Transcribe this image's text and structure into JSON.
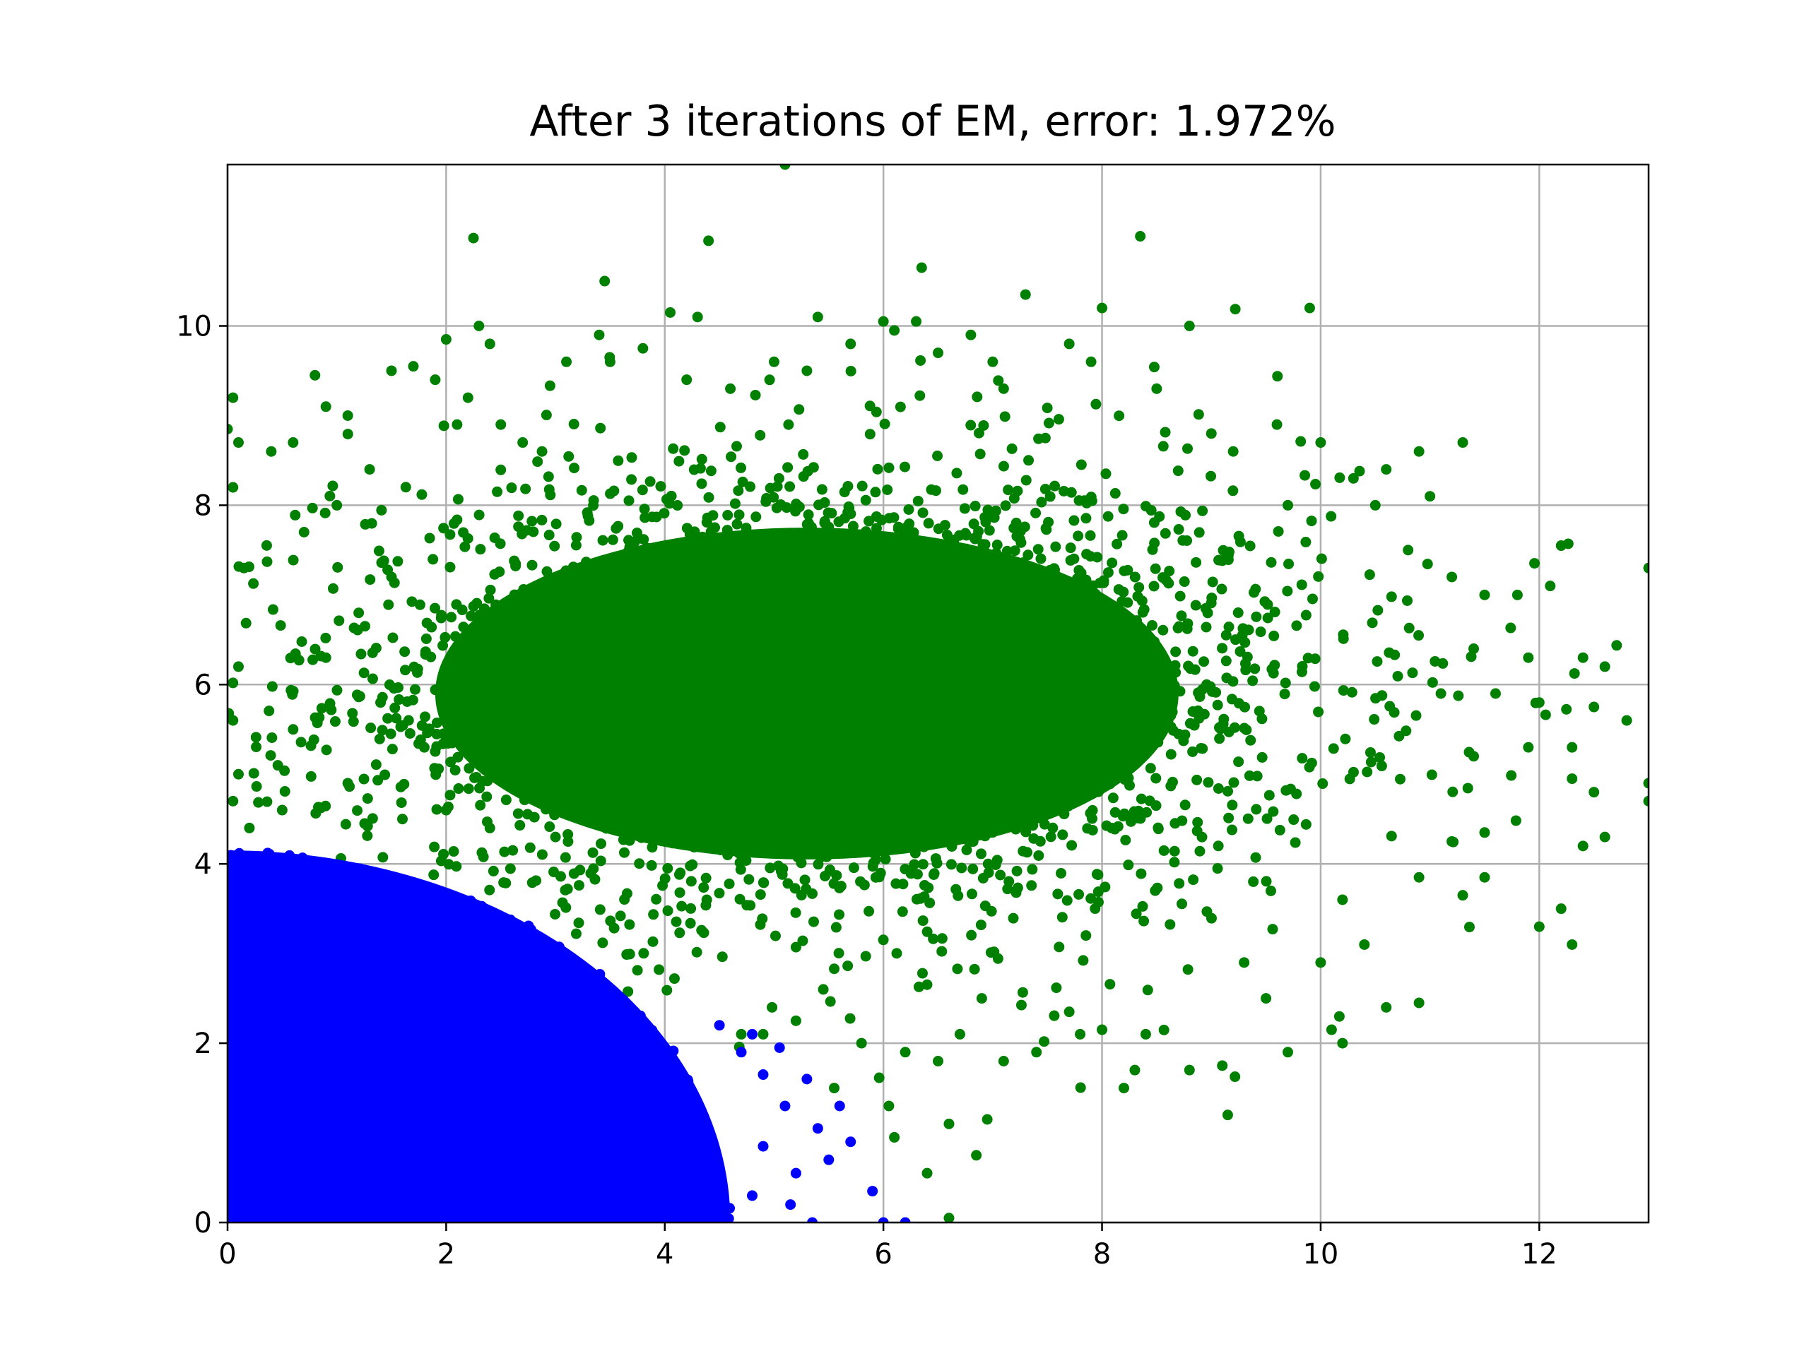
{
  "chart_data": {
    "type": "scatter",
    "title": "After 3 iterations of EM, error: 1.972%",
    "xlabel": "",
    "ylabel": "",
    "xlim": [
      0,
      13
    ],
    "ylim": [
      0,
      11.8
    ],
    "x_ticks": [
      0,
      2,
      4,
      6,
      8,
      10,
      12
    ],
    "y_ticks": [
      0,
      2,
      4,
      6,
      8,
      10
    ],
    "grid": true,
    "legend": "none",
    "series": [
      {
        "color": "#008000",
        "description_of_distribution": null,
        "points": [
          [
            0.05,
            9.2
          ],
          [
            0.0,
            8.85
          ],
          [
            0.1,
            8.7
          ],
          [
            0.05,
            8.2
          ],
          [
            0.15,
            7.3
          ],
          [
            0.1,
            6.2
          ],
          [
            0.05,
            5.6
          ],
          [
            0.1,
            5.0
          ],
          [
            0.05,
            4.7
          ],
          [
            0.2,
            4.4
          ],
          [
            0.8,
            9.45
          ],
          [
            1.1,
            9.0
          ],
          [
            0.9,
            9.1
          ],
          [
            0.6,
            8.7
          ],
          [
            0.4,
            8.6
          ],
          [
            1.3,
            8.4
          ],
          [
            1.0,
            8.0
          ],
          [
            0.7,
            7.7
          ],
          [
            1.5,
            7.2
          ],
          [
            1.2,
            6.8
          ],
          [
            0.9,
            6.3
          ],
          [
            1.4,
            5.8
          ],
          [
            0.6,
            5.5
          ],
          [
            1.8,
            5.3
          ],
          [
            1.1,
            4.9
          ],
          [
            0.5,
            4.6
          ],
          [
            1.6,
            4.5
          ],
          [
            2.0,
            4.6
          ],
          [
            2.4,
            4.4
          ],
          [
            3.0,
            4.3
          ],
          [
            1.5,
            9.5
          ],
          [
            1.7,
            9.55
          ],
          [
            1.9,
            9.4
          ],
          [
            2.0,
            9.85
          ],
          [
            2.2,
            9.2
          ],
          [
            2.1,
            8.9
          ],
          [
            2.5,
            8.9
          ],
          [
            2.7,
            8.7
          ],
          [
            2.3,
            10.0
          ],
          [
            2.4,
            9.8
          ],
          [
            2.25,
            10.98
          ],
          [
            3.1,
            9.6
          ],
          [
            3.4,
            9.9
          ],
          [
            3.5,
            9.6
          ],
          [
            3.45,
            10.5
          ],
          [
            3.8,
            9.75
          ],
          [
            4.05,
            10.15
          ],
          [
            4.3,
            10.1
          ],
          [
            4.2,
            9.4
          ],
          [
            4.6,
            9.3
          ],
          [
            4.4,
            10.95
          ],
          [
            5.1,
            11.8
          ],
          [
            5.0,
            9.6
          ],
          [
            5.4,
            10.1
          ],
          [
            5.3,
            9.5
          ],
          [
            5.7,
            9.8
          ],
          [
            6.0,
            10.05
          ],
          [
            6.3,
            10.05
          ],
          [
            6.35,
            10.65
          ],
          [
            6.1,
            9.95
          ],
          [
            6.5,
            9.7
          ],
          [
            6.8,
            9.9
          ],
          [
            7.0,
            9.6
          ],
          [
            7.3,
            10.35
          ],
          [
            7.1,
            9.3
          ],
          [
            7.7,
            9.8
          ],
          [
            8.0,
            10.2
          ],
          [
            7.9,
            9.6
          ],
          [
            8.35,
            11.0
          ],
          [
            8.5,
            9.3
          ],
          [
            8.8,
            10.0
          ],
          [
            9.0,
            8.8
          ],
          [
            9.2,
            8.6
          ],
          [
            9.6,
            8.9
          ],
          [
            9.9,
            10.2
          ],
          [
            10.0,
            8.7
          ],
          [
            10.3,
            8.3
          ],
          [
            9.7,
            8.0
          ],
          [
            10.5,
            8.0
          ],
          [
            10.6,
            8.4
          ],
          [
            10.9,
            8.6
          ],
          [
            11.3,
            8.7
          ],
          [
            11.0,
            8.1
          ],
          [
            10.8,
            7.5
          ],
          [
            11.2,
            7.2
          ],
          [
            11.5,
            7.0
          ],
          [
            11.8,
            7.0
          ],
          [
            12.1,
            7.1
          ],
          [
            12.2,
            7.55
          ],
          [
            13.0,
            7.3
          ],
          [
            11.4,
            6.4
          ],
          [
            11.9,
            6.3
          ],
          [
            12.4,
            6.3
          ],
          [
            12.6,
            6.2
          ],
          [
            11.1,
            5.9
          ],
          [
            11.6,
            5.9
          ],
          [
            12.0,
            5.8
          ],
          [
            12.5,
            5.75
          ],
          [
            12.8,
            5.6
          ],
          [
            11.9,
            5.3
          ],
          [
            12.3,
            5.3
          ],
          [
            11.4,
            5.2
          ],
          [
            12.3,
            4.95
          ],
          [
            12.5,
            4.8
          ],
          [
            13.0,
            4.9
          ],
          [
            13.0,
            4.7
          ],
          [
            11.5,
            4.35
          ],
          [
            12.6,
            4.3
          ],
          [
            12.4,
            4.2
          ],
          [
            11.2,
            4.25
          ],
          [
            11.5,
            3.85
          ],
          [
            10.9,
            3.85
          ],
          [
            11.3,
            3.65
          ],
          [
            12.0,
            3.3
          ],
          [
            12.2,
            3.5
          ],
          [
            12.3,
            3.1
          ],
          [
            10.2,
            3.6
          ],
          [
            10.4,
            3.1
          ],
          [
            10.0,
            2.9
          ],
          [
            10.2,
            2.0
          ],
          [
            10.9,
            2.45
          ],
          [
            10.6,
            2.4
          ],
          [
            10.1,
            2.15
          ],
          [
            9.7,
            1.9
          ],
          [
            9.5,
            2.5
          ],
          [
            9.3,
            2.9
          ],
          [
            9.1,
            1.75
          ],
          [
            9.15,
            1.2
          ],
          [
            8.8,
            1.7
          ],
          [
            8.3,
            1.7
          ],
          [
            8.4,
            2.1
          ],
          [
            8.0,
            2.15
          ],
          [
            7.7,
            2.35
          ],
          [
            7.4,
            1.9
          ],
          [
            7.1,
            1.8
          ],
          [
            6.9,
            2.5
          ],
          [
            6.7,
            2.1
          ],
          [
            6.5,
            1.8
          ],
          [
            6.6,
            1.1
          ],
          [
            6.85,
            0.75
          ],
          [
            6.4,
            0.55
          ],
          [
            6.6,
            0.05
          ],
          [
            6.1,
            0.95
          ],
          [
            6.05,
            1.3
          ],
          [
            5.8,
            2.0
          ],
          [
            5.55,
            1.5
          ],
          [
            5.45,
            2.6
          ],
          [
            5.2,
            2.25
          ],
          [
            4.9,
            2.1
          ],
          [
            4.7,
            2.1
          ],
          [
            6.2,
            1.9
          ],
          [
            6.95,
            1.15
          ],
          [
            7.8,
            2.1
          ],
          [
            8.2,
            1.5
          ]
        ]
      },
      {
        "color": "#0000ff",
        "points": [
          [
            5.9,
            0.35
          ],
          [
            6.2,
            0.0
          ],
          [
            6.0,
            0.0
          ],
          [
            5.7,
            0.9
          ],
          [
            5.6,
            1.3
          ],
          [
            5.3,
            1.6
          ],
          [
            5.1,
            1.3
          ],
          [
            4.9,
            0.85
          ],
          [
            5.2,
            0.55
          ],
          [
            5.5,
            0.7
          ],
          [
            4.7,
            1.9
          ],
          [
            4.9,
            1.65
          ],
          [
            4.8,
            2.1
          ],
          [
            4.5,
            2.2
          ],
          [
            5.05,
            1.95
          ],
          [
            5.4,
            1.05
          ],
          [
            5.15,
            0.2
          ],
          [
            4.8,
            0.3
          ],
          [
            5.35,
            0.0
          ]
        ]
      }
    ],
    "dense_regions": [
      {
        "series_color": "#008000",
        "shape": "ellipse",
        "center": [
          5.3,
          5.9
        ],
        "radii": [
          3.4,
          1.85
        ],
        "alpha": 1.0
      },
      {
        "series_color": "#008000",
        "shape": "ellipse",
        "center": [
          5.6,
          5.9
        ],
        "radii": [
          5.1,
          2.8
        ],
        "alpha": 0.65
      },
      {
        "series_color": "#0000ff",
        "shape": "quarter-disk",
        "center": [
          0.0,
          0.0
        ],
        "radii": [
          4.6,
          4.15
        ],
        "alpha": 1.0
      }
    ]
  }
}
